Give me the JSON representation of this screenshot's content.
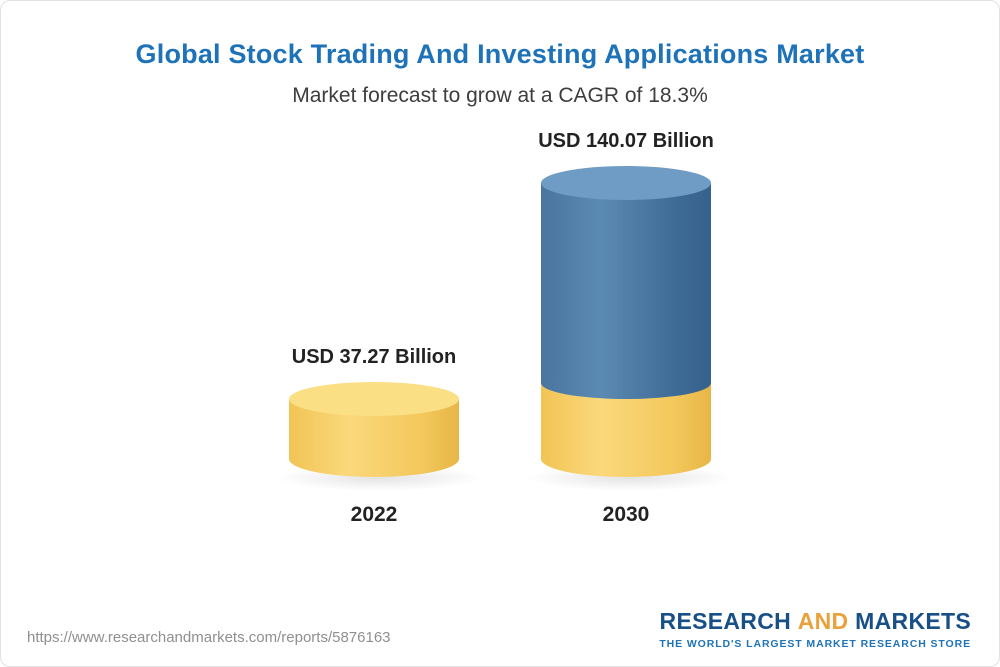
{
  "header": {
    "title": "Global Stock Trading And Investing Applications Market",
    "subtitle": "Market forecast to grow at a CAGR of 18.3%"
  },
  "chart_data": {
    "type": "bar",
    "categories": [
      "2022",
      "2030"
    ],
    "values": [
      37.27,
      140.07
    ],
    "value_labels": [
      "USD 37.27 Billion",
      "USD 140.07 Billion"
    ],
    "unit": "USD Billion",
    "title": "Global Stock Trading And Investing Applications Market",
    "subtitle": "Market forecast to grow at a CAGR of 18.3%",
    "cagr_percent": 18.3,
    "ylim": [
      0,
      150
    ],
    "legend_position": "none",
    "grid": false,
    "colors": {
      "base_segment": "#f3c85c",
      "base_top": "#fbdf85",
      "growth_segment": "#3f6c97",
      "growth_top": "#6f9cc4"
    },
    "notes": "2030 bar is stacked: yellow base equals 2022 value (37.27), blue portion is growth to 140.07"
  },
  "footer": {
    "url": "https://www.researchandmarkets.com/reports/5876163",
    "logo": {
      "research": "RESEARCH",
      "and": "AND",
      "markets": "MARKETS",
      "tagline": "THE WORLD'S LARGEST MARKET RESEARCH STORE"
    }
  }
}
